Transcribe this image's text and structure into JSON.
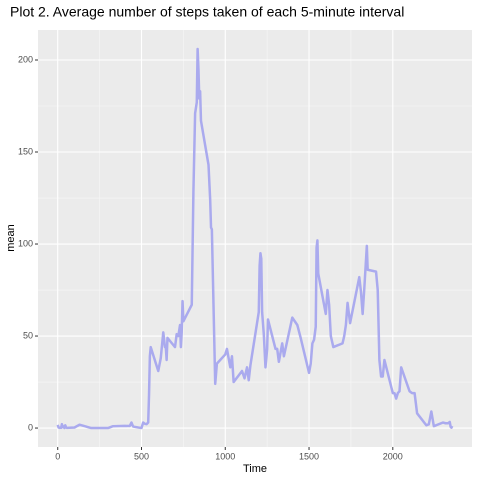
{
  "chart_data": {
    "type": "line",
    "title": "Plot 2. Average number of steps taken of each 5-minute interval",
    "x_label": "Time",
    "y_label": "mean",
    "x": [
      0,
      5,
      10,
      15,
      20,
      25,
      30,
      35,
      40,
      45,
      50,
      55,
      100,
      130,
      200,
      230,
      300,
      330,
      400,
      430,
      440,
      450,
      500,
      510,
      520,
      530,
      540,
      545,
      550,
      555,
      600,
      615,
      630,
      640,
      645,
      650,
      655,
      700,
      710,
      720,
      730,
      735,
      740,
      745,
      750,
      800,
      810,
      820,
      830,
      835,
      840,
      845,
      850,
      855,
      900,
      910,
      915,
      920,
      930,
      940,
      950,
      1000,
      1010,
      1020,
      1030,
      1040,
      1050,
      1100,
      1115,
      1130,
      1140,
      1150,
      1200,
      1205,
      1210,
      1215,
      1220,
      1230,
      1240,
      1250,
      1255,
      1300,
      1310,
      1320,
      1330,
      1340,
      1350,
      1400,
      1430,
      1450,
      1500,
      1510,
      1520,
      1530,
      1540,
      1545,
      1550,
      1555,
      1600,
      1610,
      1620,
      1630,
      1645,
      1700,
      1710,
      1720,
      1730,
      1745,
      1800,
      1810,
      1820,
      1830,
      1845,
      1850,
      1900,
      1910,
      1920,
      1930,
      1940,
      1950,
      2000,
      2010,
      2020,
      2030,
      2040,
      2050,
      2100,
      2115,
      2130,
      2145,
      2200,
      2215,
      2230,
      2245,
      2300,
      2315,
      2330,
      2340,
      2345,
      2350,
      2355
    ],
    "series": [
      {
        "name": "mean",
        "color": "#aaaaee",
        "values": [
          1.7,
          0.3,
          0.1,
          0.2,
          0.1,
          2.1,
          0.5,
          0.9,
          0,
          1.5,
          0.3,
          0.1,
          0.3,
          1.8,
          0,
          0,
          0,
          1,
          1.2,
          1.1,
          3,
          0.8,
          0,
          3,
          2.3,
          2.1,
          3,
          18,
          39,
          44,
          31,
          38,
          52,
          44,
          44,
          37,
          49,
          44,
          51,
          50,
          56,
          44,
          52,
          69,
          58,
          67,
          129,
          171,
          177,
          206,
          195,
          179,
          183,
          167,
          143,
          124,
          109,
          108,
          66,
          24,
          35,
          40,
          43,
          38,
          33,
          39,
          25,
          31,
          27,
          33,
          26,
          34,
          63,
          88,
          95,
          92,
          63,
          51,
          33,
          43,
          59,
          43,
          43,
          36,
          41,
          46,
          39,
          60,
          56,
          49,
          30,
          35,
          46,
          48,
          55,
          98,
          102,
          84,
          62,
          75,
          67,
          50,
          44,
          46,
          50,
          56,
          68,
          57,
          82,
          74,
          62,
          76,
          99,
          86,
          85,
          75,
          37,
          28,
          28,
          37,
          19,
          19,
          16,
          19,
          20,
          33,
          20,
          19,
          19,
          8,
          1.5,
          2,
          9,
          1,
          3,
          2.6,
          2.6,
          3.3,
          0.7,
          0.2,
          1.1
        ]
      }
    ],
    "xlim": [
      -117.75,
      2472.75
    ],
    "ylim": [
      -10.3,
      216.3
    ],
    "xticks": [
      0,
      500,
      1000,
      1500,
      2000
    ],
    "yticks": [
      0,
      50,
      100,
      150,
      200
    ],
    "grid": true
  }
}
